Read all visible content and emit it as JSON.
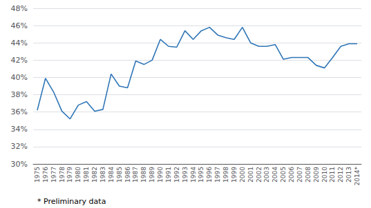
{
  "chart_data": {
    "type": "line",
    "categories": [
      "1975",
      "1976",
      "1977",
      "1978",
      "1979",
      "1980",
      "1981",
      "1982",
      "1983",
      "1984",
      "1985",
      "1986",
      "1987",
      "1988",
      "1989",
      "1990",
      "1991",
      "1992",
      "1993",
      "1994",
      "1995",
      "1996",
      "1997",
      "1998",
      "1999",
      "2000",
      "2001",
      "2002",
      "2003",
      "2004",
      "2005",
      "2006",
      "2007",
      "2008",
      "2009",
      "2010",
      "2011",
      "2012",
      "2013",
      "2014*"
    ],
    "values": [
      36.2,
      39.9,
      38.3,
      36.1,
      35.2,
      36.8,
      37.2,
      36.1,
      36.3,
      40.4,
      39.0,
      38.8,
      41.9,
      41.5,
      42.0,
      44.4,
      43.6,
      43.5,
      45.4,
      44.4,
      45.4,
      45.8,
      44.9,
      44.6,
      44.4,
      45.8,
      44.0,
      43.6,
      43.6,
      43.8,
      42.1,
      42.3,
      42.3,
      42.3,
      41.4,
      41.1,
      42.3,
      43.6,
      43.9,
      43.9
    ],
    "color": "#2E75B6",
    "ylim": [
      30,
      48
    ],
    "yticks": [
      {
        "value": 30,
        "label": "30%"
      },
      {
        "value": 32,
        "label": "32%"
      },
      {
        "value": 34,
        "label": "34%"
      },
      {
        "value": 36,
        "label": "36%"
      },
      {
        "value": 38,
        "label": "38%"
      },
      {
        "value": 40,
        "label": "40%"
      },
      {
        "value": 42,
        "label": "42%"
      },
      {
        "value": 44,
        "label": "44%"
      },
      {
        "value": 46,
        "label": "46%"
      },
      {
        "value": 48,
        "label": "48%"
      }
    ],
    "grid": true,
    "annotations": [
      "* Preliminary data"
    ]
  }
}
